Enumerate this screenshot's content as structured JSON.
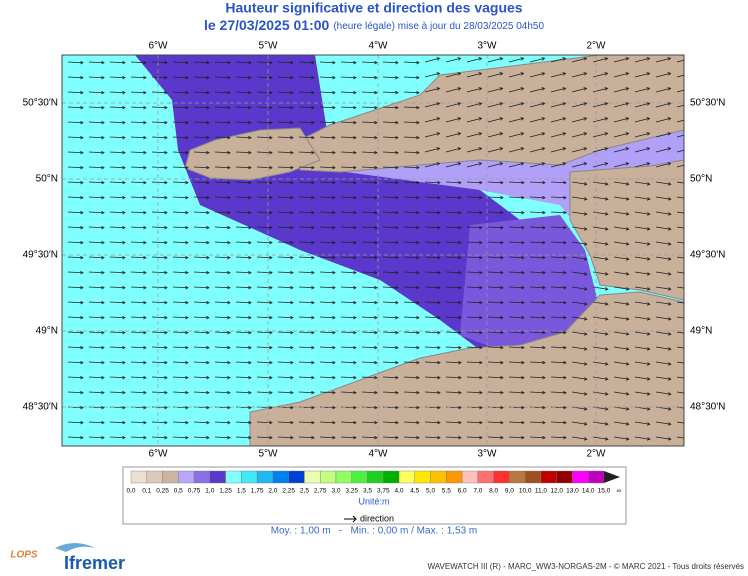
{
  "header": {
    "title": "Hauteur significative et direction des vagues",
    "date": "le 27/03/2025 01:00",
    "update": "(heure légale) mise à jour du 28/03/2025 04h50"
  },
  "map": {
    "lon_labels": [
      "6°W",
      "5°W",
      "4°W",
      "3°W",
      "2°W"
    ],
    "lat_labels": [
      "50°30'N",
      "50°N",
      "49°30'N",
      "49°N",
      "48°30'N"
    ]
  },
  "legend": {
    "labels": [
      "0,0",
      "0,1",
      "0,25",
      "0,5",
      "0,75",
      "1,0",
      "1,25",
      "1,5",
      "1,75",
      "2,0",
      "2,25",
      "2,5",
      "2,75",
      "3,0",
      "3,25",
      "3,5",
      "3,75",
      "4,0",
      "4,5",
      "5,0",
      "5,5",
      "6,0",
      "7,0",
      "8,0",
      "9,0",
      "10,0",
      "11,0",
      "12,0",
      "13,0",
      "14,0",
      "15,0",
      "∞"
    ],
    "colors": [
      "#ece0d2",
      "#dccab8",
      "#cbb4a2",
      "#b8a8f8",
      "#8c70e8",
      "#5a38cc",
      "#80ffff",
      "#40e8f8",
      "#20b8f0",
      "#0080f0",
      "#0040d0",
      "#e8ffb0",
      "#c0ff80",
      "#90ff60",
      "#50f040",
      "#20d020",
      "#00b000",
      "#ffff60",
      "#ffe800",
      "#ffc000",
      "#ff9800",
      "#ffc0c0",
      "#ff7070",
      "#ff3030",
      "#b87840",
      "#a05020",
      "#c00000",
      "#900000",
      "#ff00ff",
      "#c000c0",
      "#202020"
    ],
    "unit": "Unité:m",
    "direction": "direction"
  },
  "stats": "Moy. : 1,00 m   -   Min. : 0,00 m / Max. : 1,53 m",
  "footer": {
    "credit": "WAVEWATCH III (R) - MARC_WW3-NORGAS-2M - © MARC 2021 - Tous droits réservés",
    "logo_lops": "LOPS",
    "logo_ifremer": "Ifremer"
  }
}
